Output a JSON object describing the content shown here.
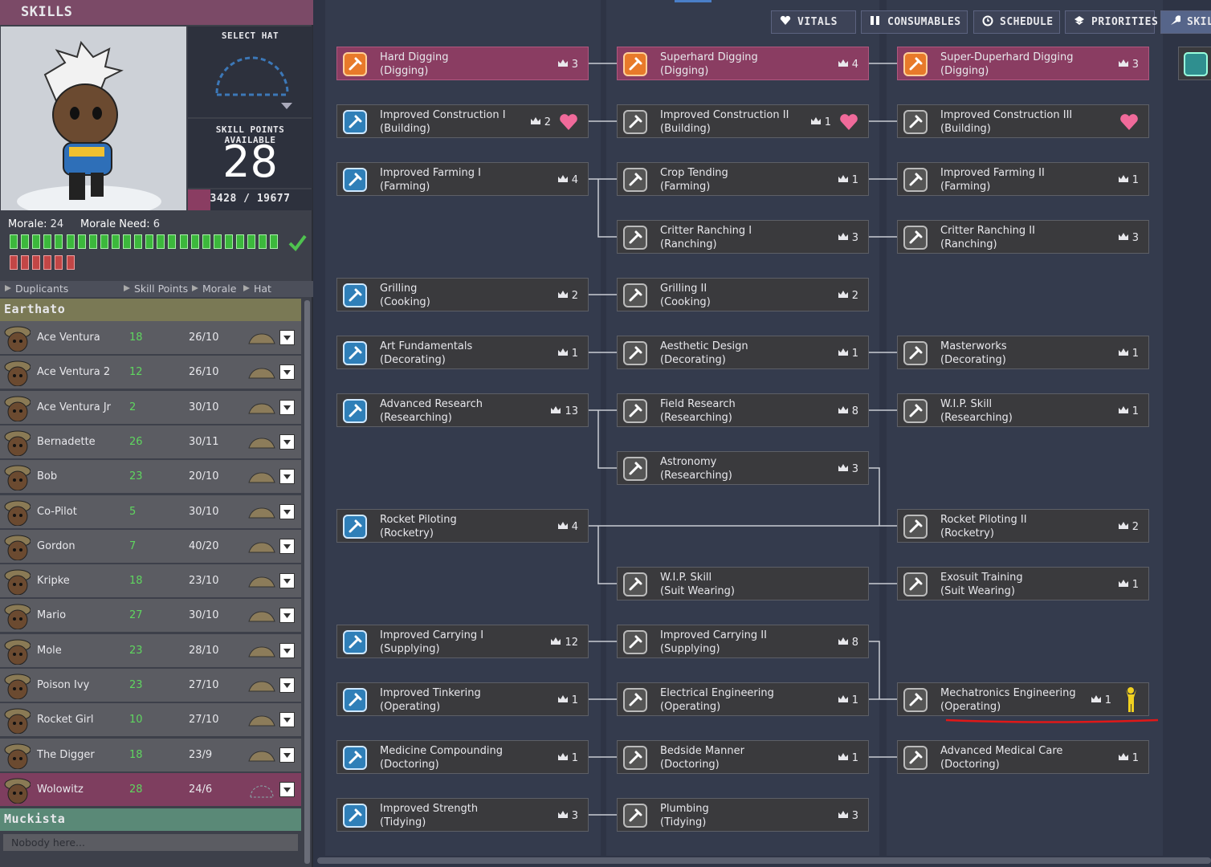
{
  "window": {
    "title": "SKILLS",
    "tabs": [
      "VITALS",
      "CONSUMABLES",
      "SCHEDULE",
      "PRIORITIES",
      "SKILLS"
    ]
  },
  "hat_panel": {
    "select_hat": "SELECT HAT",
    "points_label": "SKILL POINTS AVAILABLE",
    "points": 28,
    "experience": "3428 / 19677"
  },
  "morale": {
    "label": "Morale:",
    "value": 24,
    "need_label": "Morale Need:",
    "need": 6
  },
  "table": {
    "headers": [
      "Duplicants",
      "Skill Points",
      "Morale",
      "Hat"
    ],
    "groups": [
      {
        "name": "Earthato",
        "rows": [
          {
            "name": "Ace Ventura",
            "points": 18,
            "morale": "26/10"
          },
          {
            "name": "Ace Ventura 2",
            "points": 12,
            "morale": "26/10"
          },
          {
            "name": "Ace Ventura Jr",
            "points": 2,
            "morale": "30/10"
          },
          {
            "name": "Bernadette",
            "points": 26,
            "morale": "30/11"
          },
          {
            "name": "Bob",
            "points": 23,
            "morale": "20/10"
          },
          {
            "name": "Co-Pilot",
            "points": 5,
            "morale": "30/10"
          },
          {
            "name": "Gordon",
            "points": 7,
            "morale": "40/20"
          },
          {
            "name": "Kripke",
            "points": 18,
            "morale": "23/10"
          },
          {
            "name": "Mario",
            "points": 27,
            "morale": "30/10"
          },
          {
            "name": "Mole",
            "points": 23,
            "morale": "28/10"
          },
          {
            "name": "Poison Ivy",
            "points": 23,
            "morale": "27/10"
          },
          {
            "name": "Rocket Girl",
            "points": 10,
            "morale": "27/10"
          },
          {
            "name": "The Digger",
            "points": 18,
            "morale": "23/9"
          },
          {
            "name": "Wolowitz",
            "points": 28,
            "morale": "24/6",
            "selected": true
          }
        ]
      },
      {
        "name": "Muckista",
        "empty_text": "Nobody here...",
        "rows": []
      }
    ]
  },
  "skill_tree": {
    "rows": [
      [
        {
          "name": "Hard Digging",
          "group": "(Digging)",
          "count": 3,
          "learned": true
        },
        {
          "name": "Superhard Digging",
          "group": "(Digging)",
          "count": 4,
          "learned": true
        },
        {
          "name": "Super-Duperhard Digging",
          "group": "(Digging)",
          "count": 3,
          "learned": true
        }
      ],
      [
        {
          "name": "Improved Construction I",
          "group": "(Building)",
          "count": 2,
          "heart": true
        },
        {
          "name": "Improved Construction II",
          "group": "(Building)",
          "count": 1,
          "heart": true
        },
        {
          "name": "Improved Construction III",
          "group": "(Building)",
          "heart": true
        }
      ],
      [
        {
          "name": "Improved Farming I",
          "group": "(Farming)",
          "count": 4
        },
        {
          "name": "Crop Tending",
          "group": "(Farming)",
          "count": 1
        },
        {
          "name": "Improved Farming II",
          "group": "(Farming)",
          "count": 1
        }
      ],
      [
        null,
        {
          "name": "Critter Ranching I",
          "group": "(Ranching)",
          "count": 3
        },
        {
          "name": "Critter Ranching II",
          "group": "(Ranching)",
          "count": 3
        }
      ],
      [
        {
          "name": "Grilling",
          "group": "(Cooking)",
          "count": 2
        },
        {
          "name": "Grilling II",
          "group": "(Cooking)",
          "count": 2
        },
        null
      ],
      [
        {
          "name": "Art Fundamentals",
          "group": "(Decorating)",
          "count": 1
        },
        {
          "name": "Aesthetic Design",
          "group": "(Decorating)",
          "count": 1
        },
        {
          "name": "Masterworks",
          "group": "(Decorating)",
          "count": 1
        }
      ],
      [
        {
          "name": "Advanced Research",
          "group": "(Researching)",
          "count": 13
        },
        {
          "name": "Field Research",
          "group": "(Researching)",
          "count": 8
        },
        {
          "name": "W.I.P. Skill",
          "group": "(Researching)",
          "count": 1
        }
      ],
      [
        null,
        {
          "name": "Astronomy",
          "group": "(Researching)",
          "count": 3
        },
        null
      ],
      [
        {
          "name": "Rocket Piloting",
          "group": "(Rocketry)",
          "count": 4
        },
        null,
        {
          "name": "Rocket Piloting II",
          "group": "(Rocketry)",
          "count": 2
        }
      ],
      [
        null,
        {
          "name": "W.I.P. Skill",
          "group": "(Suit Wearing)"
        },
        {
          "name": "Exosuit Training",
          "group": "(Suit Wearing)",
          "count": 1
        }
      ],
      [
        {
          "name": "Improved Carrying I",
          "group": "(Supplying)",
          "count": 12
        },
        {
          "name": "Improved Carrying II",
          "group": "(Supplying)",
          "count": 8
        },
        null
      ],
      [
        {
          "name": "Improved Tinkering",
          "group": "(Operating)",
          "count": 1
        },
        {
          "name": "Electrical Engineering",
          "group": "(Operating)",
          "count": 1
        },
        {
          "name": "Mechatronics Engineering",
          "group": "(Operating)",
          "count": 1,
          "figure": true
        }
      ],
      [
        {
          "name": "Medicine Compounding",
          "group": "(Doctoring)",
          "count": 1
        },
        {
          "name": "Bedside Manner",
          "group": "(Doctoring)",
          "count": 1
        },
        {
          "name": "Advanced Medical Care",
          "group": "(Doctoring)",
          "count": 1
        }
      ],
      [
        {
          "name": "Improved Strength",
          "group": "(Tidying)",
          "count": 3
        },
        {
          "name": "Plumbing",
          "group": "(Tidying)",
          "count": 3
        },
        null
      ]
    ]
  }
}
